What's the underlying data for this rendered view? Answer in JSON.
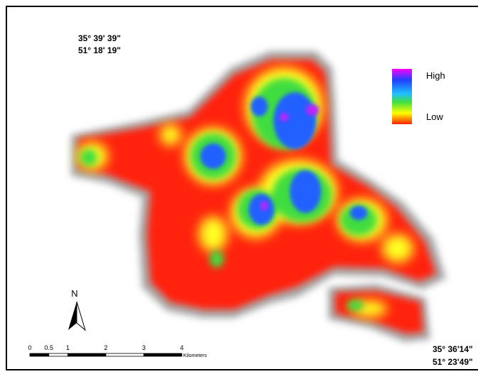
{
  "top_left_coords": [
    "35° 39' 39\"",
    "51° 18' 19\""
  ],
  "bottom_right_coords": [
    "35° 36'14\"",
    "51° 23'49\""
  ],
  "legend": {
    "high": "High",
    "low": "Low"
  },
  "north_arrow": "N",
  "scale_bar": {
    "ticks": [
      0,
      0.5,
      1,
      2,
      3,
      4
    ],
    "unit": "Kilometers"
  }
}
